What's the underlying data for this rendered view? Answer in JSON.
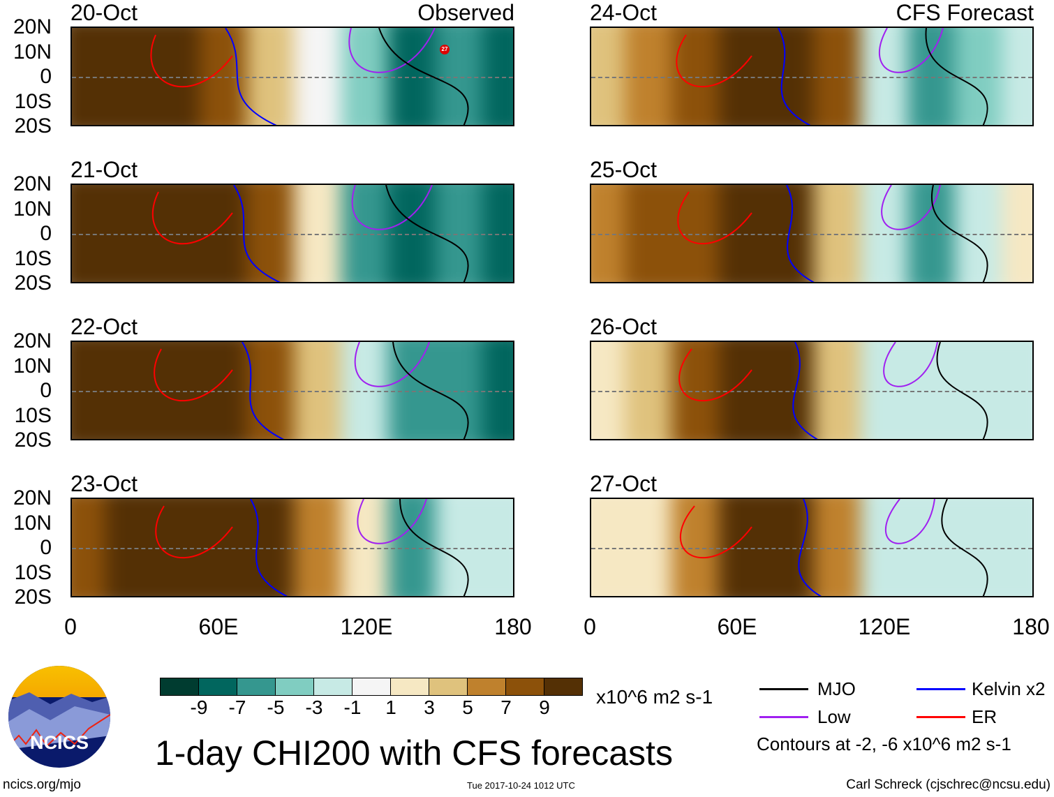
{
  "panels": [
    {
      "date": "20-Oct",
      "label": "Observed",
      "values": [
        10,
        10,
        10,
        8,
        4,
        0,
        -4,
        -8,
        -6,
        -8
      ]
    },
    {
      "date": "21-Oct",
      "label": "",
      "values": [
        10,
        10,
        10,
        10,
        8,
        2,
        -5,
        -8,
        -6,
        -8
      ]
    },
    {
      "date": "22-Oct",
      "label": "",
      "values": [
        10,
        10,
        10,
        10,
        9,
        4,
        -2,
        -5,
        -6,
        -7
      ]
    },
    {
      "date": "23-Oct",
      "label": "",
      "values": [
        9,
        10,
        10,
        10,
        10,
        7,
        3,
        -5,
        -1,
        -1
      ]
    },
    {
      "date": "24-Oct",
      "label": "CFS Forecast",
      "values": [
        4,
        6,
        8,
        10,
        10,
        8,
        -2,
        -6,
        -3,
        -2
      ]
    },
    {
      "date": "25-Oct",
      "label": "",
      "values": [
        6,
        8,
        9,
        10,
        10,
        5,
        -2,
        -5,
        -1,
        2
      ]
    },
    {
      "date": "26-Oct",
      "label": "",
      "values": [
        3,
        5,
        8,
        10,
        10,
        4,
        -2,
        -2,
        -1,
        -1
      ]
    },
    {
      "date": "27-Oct",
      "label": "",
      "values": [
        2,
        3,
        6,
        10,
        10,
        7,
        -1,
        -1,
        -1,
        -1
      ]
    }
  ],
  "lat_labels": [
    "20N",
    "10N",
    "0",
    "10S",
    "20S"
  ],
  "lon_labels": [
    "0",
    "60E",
    "120E",
    "180"
  ],
  "storm_marker": "27",
  "colorbar": {
    "colors": [
      "#003c30",
      "#01665e",
      "#35978f",
      "#80cdc1",
      "#c7eae5",
      "#f5f5f5",
      "#f6e8c3",
      "#dfc27d",
      "#bf812d",
      "#8c510a",
      "#543005"
    ],
    "labels": [
      "-9",
      "-7",
      "-5",
      "-3",
      "-1",
      "1",
      "3",
      "5",
      "7",
      "9"
    ],
    "units": "x10^6 m2 s-1"
  },
  "key": {
    "mjo": {
      "label": "MJO",
      "color": "#000000"
    },
    "kelvin": {
      "label": "Kelvin x2",
      "color": "#0000ff"
    },
    "low": {
      "label": "Low",
      "color": "#a020f0"
    },
    "er": {
      "label": "ER",
      "color": "#ff0000"
    },
    "contours_note": "Contours at -2, -6 x10^6 m2 s-1"
  },
  "title": "1-day CHI200 with CFS forecasts",
  "logo_text": "NCICS",
  "footer": {
    "left": "ncics.org/mjo",
    "center": "Tue 2017-10-24 1012 UTC",
    "right": "Carl Schreck (cjschrec@ncsu.edu)"
  }
}
